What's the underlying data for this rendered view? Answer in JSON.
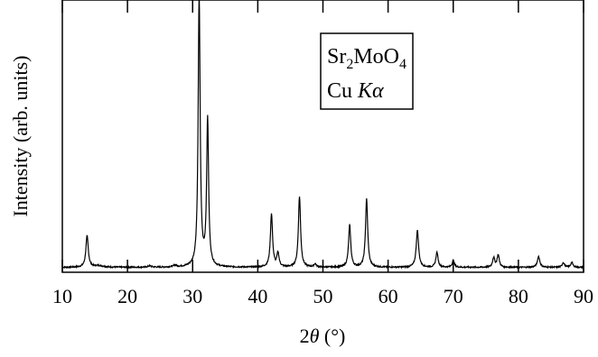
{
  "chart_data": {
    "type": "line",
    "title": "",
    "xlabel": {
      "prefix": "2",
      "symbol": "θ",
      "unit": " (°)"
    },
    "ylabel": "Intensity (arb. units)",
    "xlim": [
      10,
      90
    ],
    "ylim": [
      0,
      100
    ],
    "xticks": [
      10,
      20,
      30,
      40,
      50,
      60,
      70,
      80,
      90
    ],
    "grid": false,
    "legend_position": "top-right",
    "annotation": {
      "line1": {
        "base1": "Sr",
        "sub1": "2",
        "base2": "MoO",
        "sub2": "4"
      },
      "line2": {
        "text": "Cu ",
        "italic": "Kα"
      }
    },
    "baseline": 1.8,
    "series": [
      {
        "color": "#000000",
        "peaks": [
          [
            13.8,
            11.5,
            0.22
          ],
          [
            15.6,
            0.6,
            0.8
          ],
          [
            23.4,
            0.5,
            0.3
          ],
          [
            27.3,
            0.6,
            0.3
          ],
          [
            31.0,
            100,
            0.18
          ],
          [
            32.3,
            54,
            0.18
          ],
          [
            42.1,
            19.5,
            0.2
          ],
          [
            43.1,
            5,
            0.2
          ],
          [
            46.4,
            26,
            0.2
          ],
          [
            48.8,
            1.2,
            0.2
          ],
          [
            54.1,
            15.5,
            0.2
          ],
          [
            56.7,
            25,
            0.2
          ],
          [
            64.5,
            13.5,
            0.22
          ],
          [
            67.5,
            5.5,
            0.2
          ],
          [
            70.0,
            2.5,
            0.2
          ],
          [
            76.2,
            3.5,
            0.2
          ],
          [
            76.9,
            4.5,
            0.2
          ],
          [
            83.1,
            4.0,
            0.22
          ],
          [
            86.9,
            1.8,
            0.2
          ],
          [
            88.2,
            1.8,
            0.2
          ]
        ]
      }
    ]
  }
}
